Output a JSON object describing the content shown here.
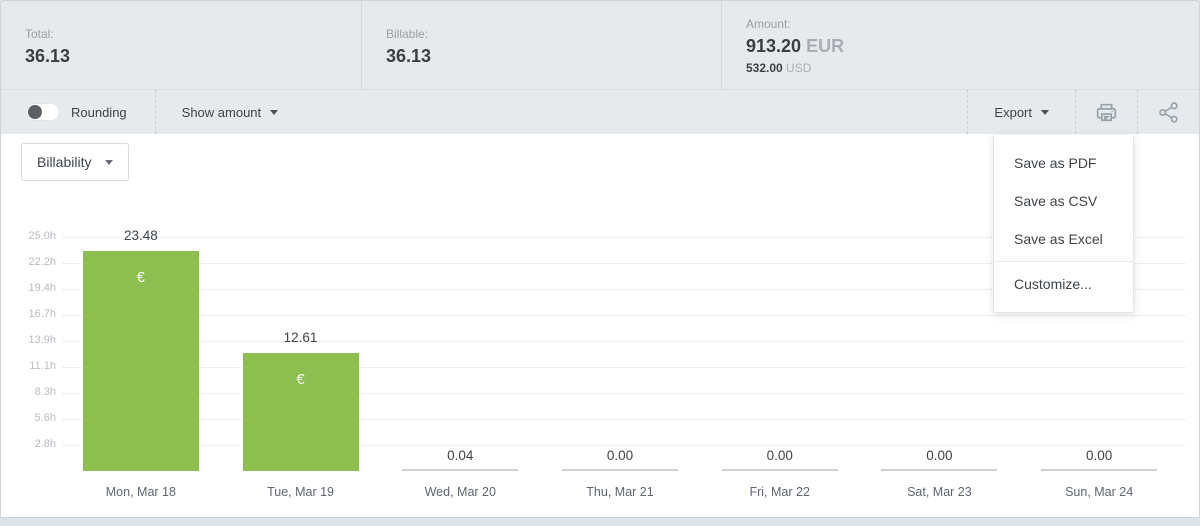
{
  "summary": {
    "total_label": "Total:",
    "total_value": "36.13",
    "billable_label": "Billable:",
    "billable_value": "36.13",
    "amount_label": "Amount:",
    "amount_primary_value": "913.20",
    "amount_primary_currency": "EUR",
    "amount_secondary_value": "532.00",
    "amount_secondary_currency": "USD"
  },
  "toolbar": {
    "rounding_label": "Rounding",
    "rounding_enabled": false,
    "show_amount_label": "Show amount",
    "export_label": "Export"
  },
  "export_menu": {
    "items": [
      "Save as PDF",
      "Save as CSV",
      "Save as Excel"
    ],
    "footer_item": "Customize..."
  },
  "chart_controls": {
    "metric_selector_value": "Billability"
  },
  "chart_data": {
    "type": "bar",
    "title": "",
    "xlabel": "",
    "ylabel": "hours",
    "categories": [
      "Mon, Mar 18",
      "Tue, Mar 19",
      "Wed, Mar 20",
      "Thu, Mar 21",
      "Fri, Mar 22",
      "Sat, Mar 23",
      "Sun, Mar 24"
    ],
    "values": [
      23.48,
      12.61,
      0.04,
      0.0,
      0.0,
      0.0,
      0.0
    ],
    "value_labels": [
      "23.48",
      "12.61",
      "0.04",
      "0.00",
      "0.00",
      "0.00",
      "0.00"
    ],
    "bar_currency_symbol": "€",
    "bar_color": "#8dbe50",
    "ylim": [
      0,
      25
    ],
    "y_ticks": [
      {
        "label": "25.0h",
        "value": 25.0
      },
      {
        "label": "22.2h",
        "value": 22.2
      },
      {
        "label": "19.4h",
        "value": 19.4
      },
      {
        "label": "16.7h",
        "value": 16.7
      },
      {
        "label": "13.9h",
        "value": 13.9
      },
      {
        "label": "11.1h",
        "value": 11.1
      },
      {
        "label": "8.3h",
        "value": 8.3
      },
      {
        "label": "5.6h",
        "value": 5.6
      },
      {
        "label": "2.8h",
        "value": 2.8
      }
    ],
    "grid": "horizontal-dotted",
    "legend": "none"
  }
}
